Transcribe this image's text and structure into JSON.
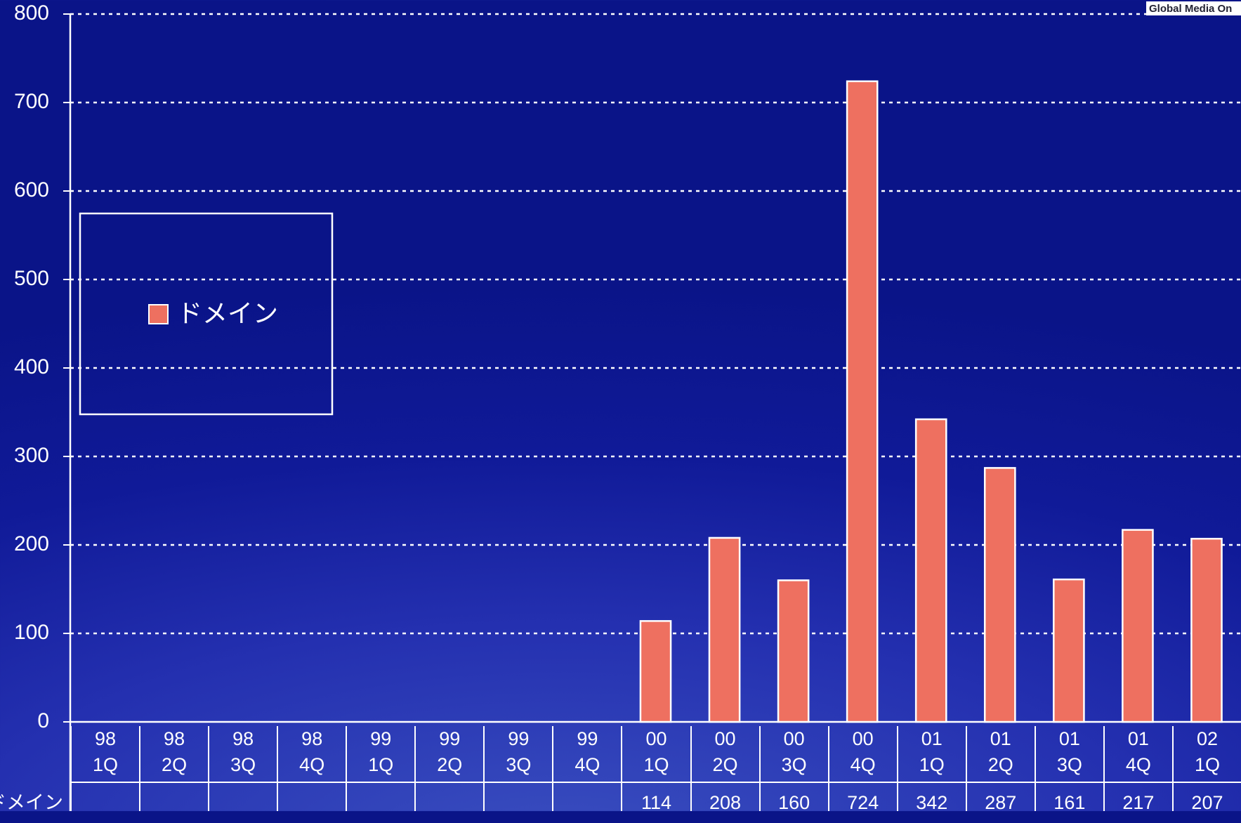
{
  "chart_data": {
    "type": "bar",
    "watermark": "Global Media On",
    "categories": [
      "98\n1Q",
      "98\n2Q",
      "98\n3Q",
      "98\n4Q",
      "99\n1Q",
      "99\n2Q",
      "99\n3Q",
      "99\n4Q",
      "00\n1Q",
      "00\n2Q",
      "00\n3Q",
      "00\n4Q",
      "01\n1Q",
      "01\n2Q",
      "01\n3Q",
      "01\n4Q",
      "02\n1Q"
    ],
    "series": [
      {
        "name": "ドメイン",
        "color": "#ee7060",
        "values": [
          null,
          null,
          null,
          null,
          null,
          null,
          null,
          null,
          114,
          208,
          160,
          724,
          342,
          287,
          161,
          217,
          207
        ]
      }
    ],
    "ylim": [
      0,
      800
    ],
    "yticks": [
      0,
      100,
      200,
      300,
      400,
      500,
      600,
      700,
      800
    ],
    "grid": true,
    "legend": "left"
  }
}
